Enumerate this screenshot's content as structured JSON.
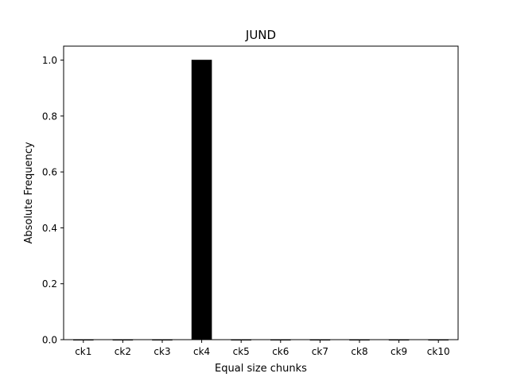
{
  "chart_data": {
    "type": "bar",
    "title": "JUND",
    "xlabel": "Equal size chunks",
    "ylabel": "Absolute Frequency",
    "categories": [
      "ck1",
      "ck2",
      "ck3",
      "ck4",
      "ck5",
      "ck6",
      "ck7",
      "ck8",
      "ck9",
      "ck10"
    ],
    "values": [
      0,
      0,
      0,
      1,
      0,
      0,
      0,
      0,
      0,
      0
    ],
    "ylim": [
      0,
      1.05
    ],
    "yticks": [
      "0.0",
      "0.2",
      "0.4",
      "0.6",
      "0.8",
      "1.0"
    ],
    "grid": false,
    "bar_color": "#000000"
  }
}
